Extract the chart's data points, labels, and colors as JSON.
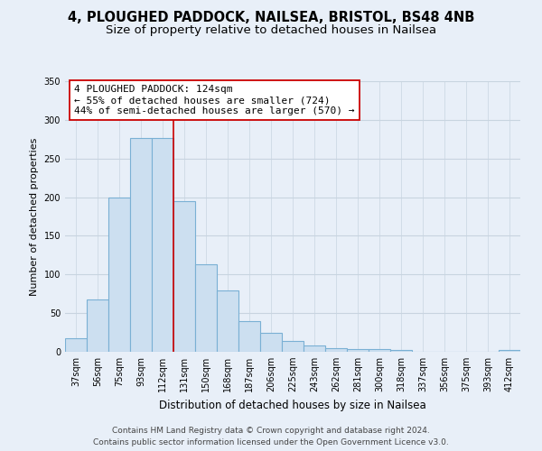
{
  "title": "4, PLOUGHED PADDOCK, NAILSEA, BRISTOL, BS48 4NB",
  "subtitle": "Size of property relative to detached houses in Nailsea",
  "xlabel": "Distribution of detached houses by size in Nailsea",
  "ylabel": "Number of detached properties",
  "categories": [
    "37sqm",
    "56sqm",
    "75sqm",
    "93sqm",
    "112sqm",
    "131sqm",
    "150sqm",
    "168sqm",
    "187sqm",
    "206sqm",
    "225sqm",
    "243sqm",
    "262sqm",
    "281sqm",
    "300sqm",
    "318sqm",
    "337sqm",
    "356sqm",
    "375sqm",
    "393sqm",
    "412sqm"
  ],
  "values": [
    18,
    68,
    200,
    277,
    277,
    195,
    113,
    79,
    40,
    24,
    14,
    8,
    5,
    3,
    3,
    2,
    0,
    0,
    0,
    0,
    2
  ],
  "bar_color": "#ccdff0",
  "bar_edge_color": "#7ab0d4",
  "vline_color": "#cc0000",
  "annotation_line1": "4 PLOUGHED PADDOCK: 124sqm",
  "annotation_line2": "← 55% of detached houses are smaller (724)",
  "annotation_line3": "44% of semi-detached houses are larger (570) →",
  "annotation_box_facecolor": "#ffffff",
  "annotation_box_edgecolor": "#cc0000",
  "ylim": [
    0,
    350
  ],
  "yticks": [
    0,
    50,
    100,
    150,
    200,
    250,
    300,
    350
  ],
  "footer_line1": "Contains HM Land Registry data © Crown copyright and database right 2024.",
  "footer_line2": "Contains public sector information licensed under the Open Government Licence v3.0.",
  "bg_color": "#e8eff8",
  "plot_bg_color": "#e8eff8",
  "grid_color": "#c8d4e0",
  "title_fontsize": 10.5,
  "subtitle_fontsize": 9.5,
  "xlabel_fontsize": 8.5,
  "ylabel_fontsize": 8,
  "footer_fontsize": 6.5,
  "annotation_fontsize": 8,
  "tick_fontsize": 7
}
